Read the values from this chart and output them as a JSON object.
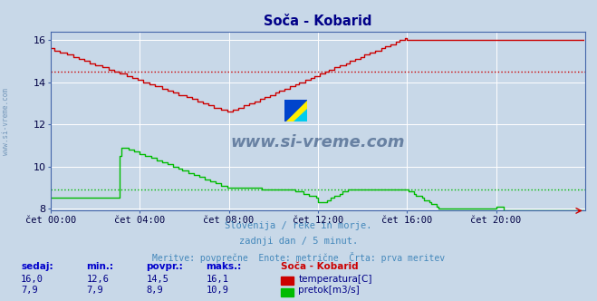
{
  "title": "Soča - Kobarid",
  "title_color": "#000088",
  "bg_color": "#c8d8e8",
  "plot_bg_color": "#c8d8e8",
  "grid_color": "#ffffff",
  "xlim": [
    0,
    288
  ],
  "ylim": [
    7.9,
    16.4
  ],
  "yticks": [
    8,
    10,
    12,
    14,
    16
  ],
  "xtick_labels": [
    "čet 00:00",
    "čet 04:00",
    "čet 08:00",
    "čet 12:00",
    "čet 16:00",
    "čet 20:00"
  ],
  "xtick_positions": [
    0,
    48,
    96,
    144,
    192,
    240
  ],
  "temp_color": "#cc0000",
  "flow_color": "#00bb00",
  "avg_temp": 14.5,
  "avg_flow": 8.9,
  "subtitle1": "Slovenija / reke in morje.",
  "subtitle2": "zadnji dan / 5 minut.",
  "subtitle3": "Meritve: povprečne  Enote: metrične  Črta: prva meritev",
  "subtitle_color": "#4488bb",
  "watermark": "www.si-vreme.com",
  "watermark_color": "#1a3a6a",
  "ylabel_text": "www.si-vreme.com",
  "ylabel_color": "#7799bb",
  "stats_headers": [
    "sedaj:",
    "min.:",
    "povpr.:",
    "maks.:",
    "Soča - Kobarid"
  ],
  "stats_temp": [
    "16,0",
    "12,6",
    "14,5",
    "16,1"
  ],
  "stats_flow": [
    "7,9",
    "7,9",
    "8,9",
    "10,9"
  ],
  "legend_temp": "temperatura[C]",
  "legend_flow": "pretok[m3/s]",
  "legend_color_temp": "#cc0000",
  "legend_color_flow": "#00bb00",
  "stats_color": "#000088",
  "stats_label_color": "#0000cc"
}
